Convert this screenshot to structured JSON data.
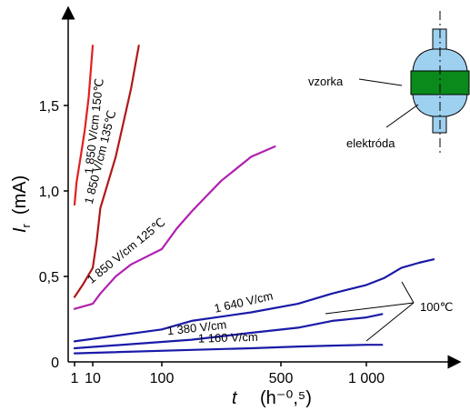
{
  "chart_data": {
    "type": "line",
    "title": "",
    "xlabel": {
      "symbol": "t",
      "unit": "(h⁻⁰,⁵)"
    },
    "ylabel": {
      "symbol": "I",
      "subscript": "r",
      "unit": "(mA)"
    },
    "x_ticks": [
      {
        "value": 1,
        "label": "1"
      },
      {
        "value": 10,
        "label": "10"
      },
      {
        "value": 100,
        "label": "100"
      },
      {
        "value": 500,
        "label": "500"
      },
      {
        "value": 1000,
        "label": "1 000"
      }
    ],
    "y_ticks": [
      {
        "value": 0,
        "label": "0"
      },
      {
        "value": 0.5,
        "label": "0,5"
      },
      {
        "value": 1.0,
        "label": "1,0"
      },
      {
        "value": 1.5,
        "label": "1,5"
      }
    ],
    "xlim": [
      0,
      1800
    ],
    "ylim": [
      0,
      1.9
    ],
    "series": [
      {
        "name": "1 850 V/cm 150℃",
        "color": "#e02020",
        "points": [
          [
            1,
            0.92
          ],
          [
            2,
            1.05
          ],
          [
            4,
            1.2
          ],
          [
            6,
            1.35
          ],
          [
            8,
            1.55
          ],
          [
            10,
            1.85
          ]
        ]
      },
      {
        "name": "1 850 V/cm 135℃",
        "color": "#b01818",
        "points": [
          [
            1,
            0.38
          ],
          [
            5,
            0.45
          ],
          [
            10,
            0.55
          ],
          [
            15,
            0.7
          ],
          [
            20,
            0.9
          ],
          [
            30,
            1.05
          ],
          [
            40,
            1.2
          ],
          [
            50,
            1.4
          ],
          [
            60,
            1.6
          ],
          [
            70,
            1.85
          ]
        ]
      },
      {
        "name": "1 850 V/cm 125℃",
        "color": "#b020b0",
        "points": [
          [
            1,
            0.31
          ],
          [
            10,
            0.34
          ],
          [
            20,
            0.4
          ],
          [
            40,
            0.5
          ],
          [
            60,
            0.57
          ],
          [
            100,
            0.66
          ],
          [
            150,
            0.78
          ],
          [
            200,
            0.88
          ],
          [
            250,
            0.97
          ],
          [
            300,
            1.06
          ],
          [
            400,
            1.2
          ],
          [
            480,
            1.26
          ]
        ]
      },
      {
        "name": "1 640 V/cm",
        "color": "#1a1aa8",
        "points": [
          [
            1,
            0.12
          ],
          [
            100,
            0.19
          ],
          [
            200,
            0.24
          ],
          [
            400,
            0.29
          ],
          [
            600,
            0.34
          ],
          [
            800,
            0.4
          ],
          [
            1000,
            0.45
          ],
          [
            1200,
            0.49
          ],
          [
            1400,
            0.55
          ],
          [
            1600,
            0.58
          ],
          [
            1770,
            0.6
          ]
        ]
      },
      {
        "name": "1 380 V/cm",
        "color": "#1a1aa8",
        "points": [
          [
            1,
            0.08
          ],
          [
            200,
            0.13
          ],
          [
            400,
            0.17
          ],
          [
            600,
            0.2
          ],
          [
            800,
            0.24
          ],
          [
            1000,
            0.26
          ],
          [
            1180,
            0.28
          ]
        ]
      },
      {
        "name": "1 160 V/cm",
        "color": "#1a1aa8",
        "points": [
          [
            1,
            0.05
          ],
          [
            200,
            0.07
          ],
          [
            400,
            0.08
          ],
          [
            600,
            0.09
          ],
          [
            800,
            0.095
          ],
          [
            1000,
            0.1
          ],
          [
            1180,
            0.1
          ]
        ]
      }
    ],
    "curve_labels": [
      {
        "series": 0,
        "text": "1 850 V/cm 150℃"
      },
      {
        "series": 1,
        "text": "1 850 V/cm 135℃"
      },
      {
        "series": 2,
        "text": "1 850 V/cm 125℃"
      },
      {
        "series": 3,
        "text": "1 640 V/cm"
      },
      {
        "series": 4,
        "text": "1 380 V/cm"
      },
      {
        "series": 5,
        "text": "1 160 V/cm"
      }
    ],
    "annotation_temp": "100℃",
    "inset": {
      "sample_label": "vzorka",
      "electrode_label": "elektróda",
      "sample_color": "#0a8a1a",
      "electrode_color": "#9ed0f0"
    }
  }
}
